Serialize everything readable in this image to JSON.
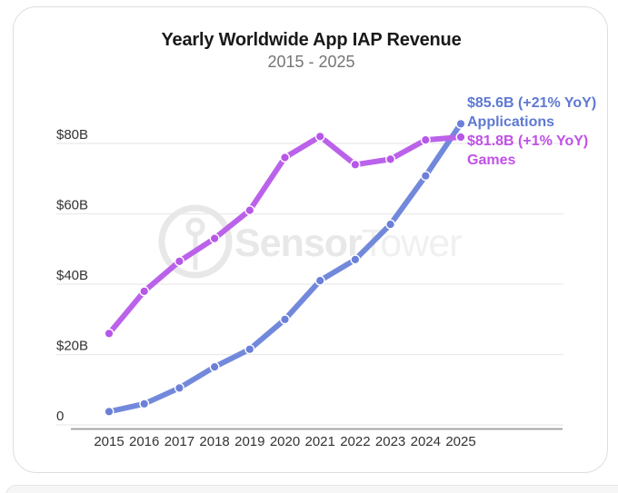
{
  "watermark": {
    "part1": "Sensor",
    "part2": "Tower"
  },
  "legend": {
    "applications": {
      "value": "$85.6B",
      "yoy": "(+21% YoY)",
      "label": "Applications",
      "text_color": "#5e79d2"
    },
    "games": {
      "value": "$81.8B",
      "yoy": "(+1% YoY)",
      "label": "Games",
      "text_color": "#c150e8"
    }
  },
  "chart_data": {
    "type": "line",
    "title": "Yearly Worldwide App IAP Revenue",
    "subtitle": "2015 - 2025",
    "categories": [
      "2015",
      "2016",
      "2017",
      "2018",
      "2019",
      "2020",
      "2021",
      "2022",
      "2023",
      "2024",
      "2025"
    ],
    "series": [
      {
        "name": "Applications",
        "color": "#7289db",
        "point_color": "#6b80d8",
        "values": [
          3.8,
          6,
          10.5,
          16.5,
          21.5,
          30,
          41,
          47,
          57,
          70.8,
          85.6
        ],
        "final_value_label": "$85.6B (+21% YoY)"
      },
      {
        "name": "Games",
        "color": "#bb62ea",
        "point_color": "#b657e8",
        "values": [
          26,
          38,
          46.5,
          53,
          61,
          76,
          82,
          74,
          75.5,
          81,
          81.8
        ],
        "final_value_label": "$81.8B (+1% YoY)"
      }
    ],
    "yticks": {
      "values": [
        0,
        20,
        40,
        60,
        80
      ],
      "labels": [
        "0",
        "$20B",
        "$40B",
        "$60B",
        "$80B"
      ]
    },
    "ylim": [
      0,
      90
    ],
    "unit": "USD billions",
    "grid": true,
    "legend_position": "top-right"
  },
  "colors": {
    "grid": "#eaeaea",
    "axis": "#9c9c9c",
    "tick_text": "#333333",
    "title": "#191919",
    "subtitle": "#757575",
    "card_border": "#dedede",
    "watermark_dark": "#e8e8e8",
    "watermark_light": "#f0f0f0"
  }
}
